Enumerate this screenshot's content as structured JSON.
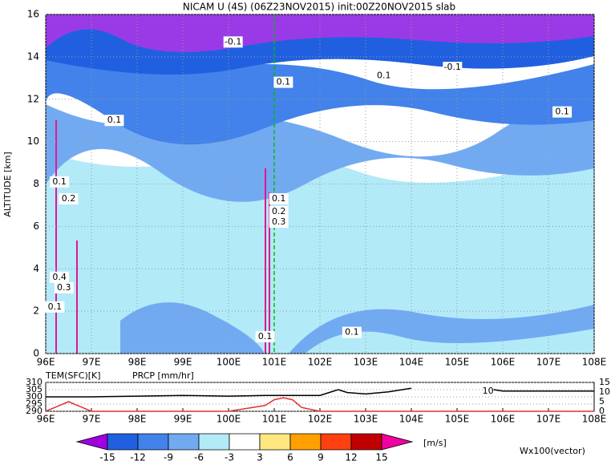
{
  "chart_data": [
    {
      "type": "contour",
      "title": "NICAM U (4S) (06Z23NOV2015) init:00Z20NOV2015 slab",
      "y_label": "ALTITUDE [km]",
      "xlim": [
        96,
        108
      ],
      "ylim": [
        0,
        16
      ],
      "xticks": [
        {
          "value": 96,
          "label": "96E"
        },
        {
          "value": 97,
          "label": "97E"
        },
        {
          "value": 98,
          "label": "98E"
        },
        {
          "value": 99,
          "label": "99E"
        },
        {
          "value": 100,
          "label": "100E"
        },
        {
          "value": 101,
          "label": "101E"
        },
        {
          "value": 102,
          "label": "102E"
        },
        {
          "value": 103,
          "label": "103E"
        },
        {
          "value": 104,
          "label": "104E"
        },
        {
          "value": 105,
          "label": "105E"
        },
        {
          "value": 106,
          "label": "106E"
        },
        {
          "value": 107,
          "label": "107E"
        },
        {
          "value": 108,
          "label": "108E"
        }
      ],
      "yticks": [
        0,
        2,
        4,
        6,
        8,
        10,
        12,
        14,
        16
      ],
      "grid": true,
      "vline": {
        "x": 101,
        "color": "#00c000"
      },
      "annotations": [
        {
          "text": "-0.1",
          "x": 100.1,
          "y": 14.7
        },
        {
          "text": "0.1",
          "x": 101.2,
          "y": 12.8
        },
        {
          "text": "0.1",
          "x": 103.4,
          "y": 13.1
        },
        {
          "text": "-0.1",
          "x": 104.9,
          "y": 13.5
        },
        {
          "text": "0.1",
          "x": 97.5,
          "y": 11.0
        },
        {
          "text": "0.1",
          "x": 107.3,
          "y": 11.4
        },
        {
          "text": "0.1",
          "x": 101.1,
          "y": 7.3
        },
        {
          "text": "0.2",
          "x": 101.1,
          "y": 6.7
        },
        {
          "text": "0.3",
          "x": 101.1,
          "y": 6.2
        },
        {
          "text": "0.1",
          "x": 102.7,
          "y": 1.0
        },
        {
          "text": "0.1",
          "x": 100.8,
          "y": 0.8
        },
        {
          "text": "0.1",
          "x": 96.3,
          "y": 8.1
        },
        {
          "text": "0.2",
          "x": 96.5,
          "y": 7.3
        },
        {
          "text": "0.4",
          "x": 96.3,
          "y": 3.6
        },
        {
          "text": "0.3",
          "x": 96.4,
          "y": 3.1
        },
        {
          "text": "0.1",
          "x": 96.2,
          "y": 2.2
        }
      ]
    },
    {
      "type": "line",
      "xlim": [
        96,
        108
      ],
      "xticks": [
        {
          "value": 96,
          "label": "96E"
        },
        {
          "value": 97,
          "label": "97E"
        },
        {
          "value": 98,
          "label": "98E"
        },
        {
          "value": 99,
          "label": "99E"
        },
        {
          "value": 100,
          "label": "100E"
        },
        {
          "value": 101,
          "label": "101E"
        },
        {
          "value": 102,
          "label": "102E"
        },
        {
          "value": 103,
          "label": "103E"
        },
        {
          "value": 104,
          "label": "104E"
        },
        {
          "value": 105,
          "label": "105E"
        },
        {
          "value": 106,
          "label": "106E"
        },
        {
          "value": 107,
          "label": "107E"
        },
        {
          "value": 108,
          "label": "108E"
        }
      ],
      "ylim": [
        290,
        310
      ],
      "yticks": [
        290,
        295,
        300,
        305,
        310
      ],
      "y2lim": [
        0,
        15
      ],
      "y2ticks": [
        0,
        5,
        10,
        15
      ],
      "x": [
        96,
        96.3,
        96.5,
        96.7,
        97,
        98,
        99,
        100,
        100.8,
        101,
        101.2,
        101.4,
        101.6,
        102,
        102.2,
        102.4,
        102.6,
        103,
        103.5,
        104,
        105,
        105.8,
        106,
        107,
        108
      ],
      "series": [
        {
          "name": "TEM(SFC)[K]",
          "color": "#000000",
          "values": [
            300,
            300,
            300,
            300,
            300,
            300.5,
            301,
            300.5,
            301,
            301,
            301,
            301,
            301,
            301,
            303,
            305,
            303,
            302,
            303.5,
            306,
            null,
            305,
            304,
            304,
            304
          ]
        },
        {
          "name": "PRCP [mm/hr]",
          "color": "#e03030",
          "axis": "y2",
          "values": [
            0,
            3,
            5,
            3,
            0,
            0,
            0,
            0,
            3,
            6,
            7,
            6,
            2,
            0,
            0,
            0,
            0,
            0,
            0,
            0,
            0,
            0,
            0,
            0,
            0
          ]
        }
      ],
      "annotations": [
        {
          "text": "10",
          "x": 105.8,
          "y": 304
        }
      ]
    },
    {
      "type": "colorbar",
      "levels": [
        -15,
        -12,
        -9,
        -6,
        -3,
        3,
        6,
        9,
        12,
        15
      ],
      "colors": [
        "#a000e0",
        "#2060e0",
        "#4282ea",
        "#72aaf2",
        "#b2eaf8",
        "#ffffff",
        "#ffe880",
        "#ffa000",
        "#ff4010",
        "#c00000",
        "#f000a0"
      ],
      "unit": "[m/s]",
      "note": "Wx100(vector)"
    }
  ]
}
